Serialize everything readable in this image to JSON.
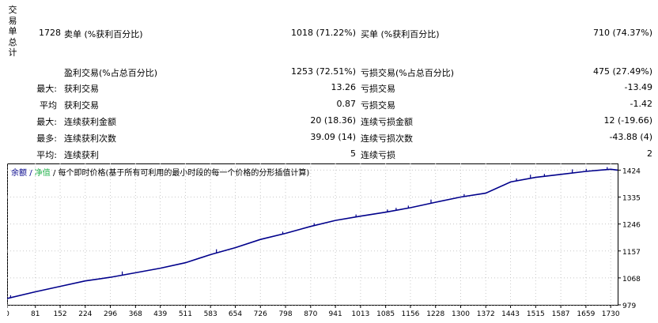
{
  "report": {
    "section_title": "交易单总计",
    "total_trades": "1728",
    "sell_label": "卖单 (%获利百分比)",
    "sell_value": "1018 (71.22%)",
    "buy_label": "买单 (%获利百分比)",
    "buy_value": "710 (74.37%)",
    "profit_trades_label": "盈利交易(%占总百分比)",
    "profit_trades_value": "1253 (72.51%)",
    "loss_trades_label": "亏损交易(%占总百分比)",
    "loss_trades_value": "475 (27.49%)",
    "rows": [
      {
        "prefix": "最大:",
        "left_label": "获利交易",
        "left_value": "13.26",
        "right_label": "亏损交易",
        "right_value": "-13.49"
      },
      {
        "prefix": "平均",
        "left_label": "获利交易",
        "left_value": "0.87",
        "right_label": "亏损交易",
        "right_value": "-1.42"
      },
      {
        "prefix": "最大:",
        "left_label": "连续获利金额",
        "left_value": "20 (18.36)",
        "right_label": "连续亏损金额",
        "right_value": "12 (-19.66)"
      },
      {
        "prefix": "最多:",
        "left_label": "连续获利次数",
        "left_value": "39.09 (14)",
        "right_label": "连续亏损次数",
        "right_value": "-43.88 (4)"
      },
      {
        "prefix": "平均:",
        "left_label": "连续获利",
        "left_value": "5",
        "right_label": "连续亏损",
        "right_value": "2"
      }
    ]
  },
  "chart": {
    "legend_balance": "余额",
    "legend_sep1": "/",
    "legend_equity": "净值",
    "legend_sep2": "/",
    "legend_desc": "每个即时价格(基于所有可利用的最小时段的每一个价格的分形插值计算)",
    "colors": {
      "balance": "#00008b",
      "equity": "#22b14c",
      "grid": "#c8c8c8"
    }
  },
  "chart_data": {
    "type": "line",
    "x_ticks": [
      "0",
      "81",
      "152",
      "224",
      "296",
      "368",
      "439",
      "511",
      "583",
      "654",
      "726",
      "798",
      "870",
      "941",
      "1013",
      "1085",
      "1156",
      "1228",
      "1300",
      "1372",
      "1443",
      "1515",
      "1587",
      "1659",
      "1730"
    ],
    "y_ticks": [
      "1424",
      "1335",
      "1246",
      "1157",
      "1068",
      "979"
    ],
    "xlim": [
      0,
      1750
    ],
    "ylim": [
      979,
      1446
    ],
    "series": [
      {
        "name": "余额",
        "x": [
          0,
          81,
          152,
          224,
          296,
          368,
          439,
          511,
          583,
          654,
          726,
          798,
          870,
          941,
          1013,
          1085,
          1156,
          1228,
          1300,
          1372,
          1443,
          1515,
          1587,
          1659,
          1730,
          1750
        ],
        "y": [
          1000,
          1022,
          1040,
          1058,
          1070,
          1085,
          1100,
          1118,
          1145,
          1168,
          1195,
          1215,
          1238,
          1258,
          1272,
          1285,
          1300,
          1318,
          1335,
          1348,
          1385,
          1400,
          1410,
          1420,
          1427,
          1424
        ]
      }
    ]
  }
}
